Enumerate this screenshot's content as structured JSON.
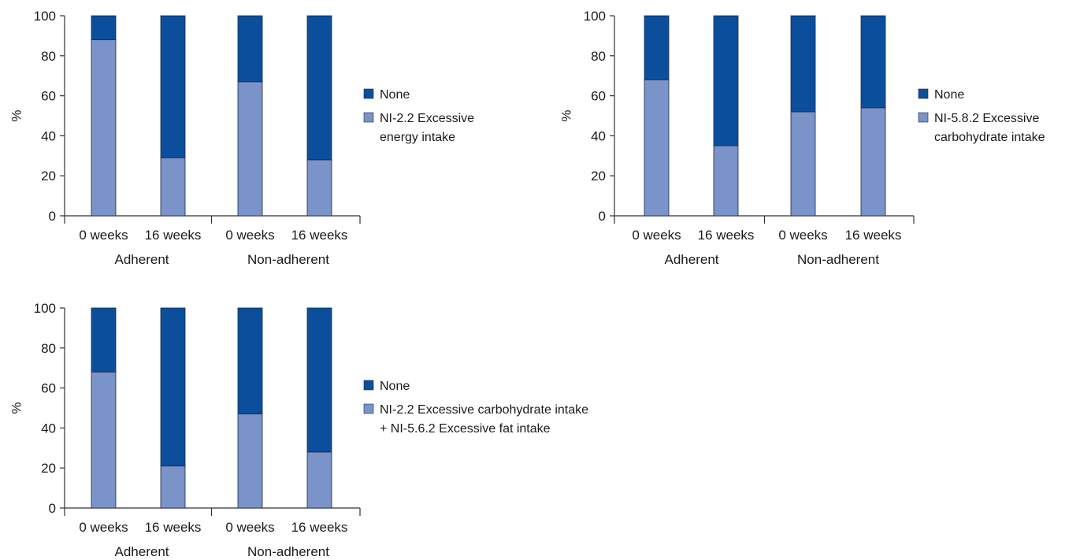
{
  "colors": {
    "none": "#0b4f9c",
    "diagnosis": "#7a93c8",
    "bar_stroke": "#1a2a4a",
    "axis": "#333333"
  },
  "chart_data": [
    {
      "type": "bar",
      "stacked": true,
      "ylabel": "%",
      "ylim": [
        0,
        100
      ],
      "yticks": [
        "0",
        "20",
        "40",
        "60",
        "80",
        "100"
      ],
      "categories": [
        "0 weeks",
        "16 weeks",
        "0 weeks",
        "16 weeks"
      ],
      "groups": [
        "Adherent",
        "Non-adherent"
      ],
      "series": [
        {
          "name": "NI-2.2 Excessive energy intake",
          "values": [
            88,
            29,
            67,
            28
          ]
        },
        {
          "name": "None",
          "values": [
            12,
            71,
            33,
            72
          ]
        }
      ],
      "legend": [
        "None",
        "NI-2.2 Excessive",
        "energy intake"
      ],
      "legend_placement": "right"
    },
    {
      "type": "bar",
      "stacked": true,
      "ylabel": "%",
      "ylim": [
        0,
        100
      ],
      "yticks": [
        "0",
        "20",
        "40",
        "60",
        "80",
        "100"
      ],
      "categories": [
        "0 weeks",
        "16 weeks",
        "0 weeks",
        "16 weeks"
      ],
      "groups": [
        "Adherent",
        "Non-adherent"
      ],
      "series": [
        {
          "name": "NI-5.8.2 Excessive carbohydrate intake",
          "values": [
            68,
            35,
            52,
            54
          ]
        },
        {
          "name": "None",
          "values": [
            32,
            65,
            48,
            46
          ]
        }
      ],
      "legend": [
        "None",
        "NI-5.8.2 Excessive",
        "carbohydrate intake"
      ],
      "legend_placement": "right"
    },
    {
      "type": "bar",
      "stacked": true,
      "ylabel": "%",
      "ylim": [
        0,
        100
      ],
      "yticks": [
        "0",
        "20",
        "40",
        "60",
        "80",
        "100"
      ],
      "categories": [
        "0 weeks",
        "16 weeks",
        "0 weeks",
        "16 weeks"
      ],
      "groups": [
        "Adherent",
        "Non-adherent"
      ],
      "series": [
        {
          "name": "NI-2.2 Excessive carbohydrate intake + NI-5.6.2 Excessive fat intake",
          "values": [
            68,
            21,
            47,
            28
          ]
        },
        {
          "name": "None",
          "values": [
            32,
            79,
            53,
            72
          ]
        }
      ],
      "legend": [
        "None",
        "NI-2.2 Excessive carbohydrate intake",
        "+ NI-5.6.2 Excessive fat intake"
      ],
      "legend_placement": "right"
    }
  ]
}
